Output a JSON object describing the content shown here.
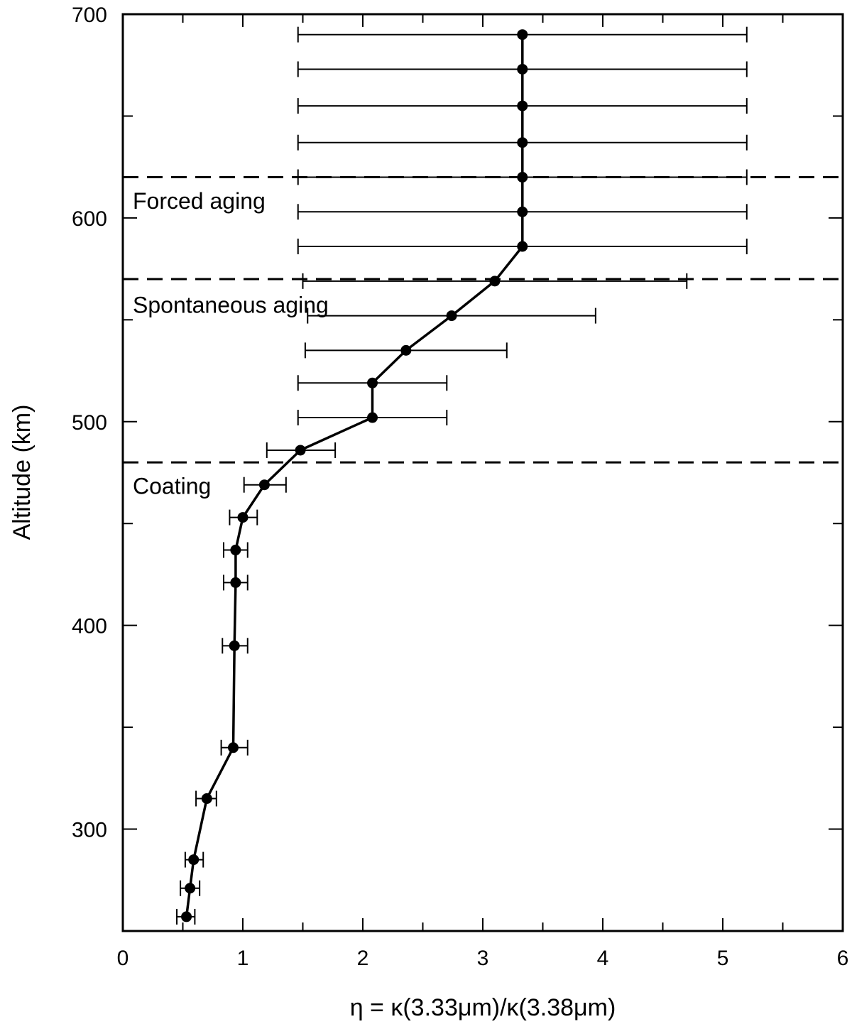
{
  "chart_data": {
    "type": "line",
    "title": "",
    "xlabel": "η = κ(3.33μm)/κ(3.38μm)",
    "ylabel": "Altitude (km)",
    "xlim": [
      0,
      6
    ],
    "ylim": [
      250,
      700
    ],
    "x_ticks": [
      "0",
      "1",
      "2",
      "3",
      "4",
      "5",
      "6"
    ],
    "y_ticks": [
      "300",
      "400",
      "500",
      "600",
      "700"
    ],
    "grid": false,
    "legend": "none",
    "series": [
      {
        "points": [
          {
            "y": 257,
            "x": 0.53,
            "xerr_low": 0.45,
            "xerr_high": 0.6
          },
          {
            "y": 271,
            "x": 0.56,
            "xerr_low": 0.48,
            "xerr_high": 0.64
          },
          {
            "y": 285,
            "x": 0.59,
            "xerr_low": 0.52,
            "xerr_high": 0.67
          },
          {
            "y": 315,
            "x": 0.7,
            "xerr_low": 0.61,
            "xerr_high": 0.78
          },
          {
            "y": 340,
            "x": 0.92,
            "xerr_low": 0.82,
            "xerr_high": 1.04
          },
          {
            "y": 390,
            "x": 0.93,
            "xerr_low": 0.83,
            "xerr_high": 1.04
          },
          {
            "y": 421,
            "x": 0.94,
            "xerr_low": 0.84,
            "xerr_high": 1.04
          },
          {
            "y": 437,
            "x": 0.94,
            "xerr_low": 0.84,
            "xerr_high": 1.04
          },
          {
            "y": 453,
            "x": 1.0,
            "xerr_low": 0.89,
            "xerr_high": 1.12
          },
          {
            "y": 469,
            "x": 1.18,
            "xerr_low": 1.01,
            "xerr_high": 1.36
          },
          {
            "y": 486,
            "x": 1.48,
            "xerr_low": 1.2,
            "xerr_high": 1.77
          },
          {
            "y": 502,
            "x": 2.08,
            "xerr_low": 1.46,
            "xerr_high": 2.7
          },
          {
            "y": 519,
            "x": 2.08,
            "xerr_low": 1.46,
            "xerr_high": 2.7
          },
          {
            "y": 535,
            "x": 2.36,
            "xerr_low": 1.52,
            "xerr_high": 3.2
          },
          {
            "y": 552,
            "x": 2.74,
            "xerr_low": 1.54,
            "xerr_high": 3.94
          },
          {
            "y": 569,
            "x": 3.1,
            "xerr_low": 1.5,
            "xerr_high": 4.7
          },
          {
            "y": 586,
            "x": 3.33,
            "xerr_low": 1.46,
            "xerr_high": 5.2
          },
          {
            "y": 603,
            "x": 3.33,
            "xerr_low": 1.46,
            "xerr_high": 5.2
          },
          {
            "y": 620,
            "x": 3.33,
            "xerr_low": 1.46,
            "xerr_high": 5.2
          },
          {
            "y": 637,
            "x": 3.33,
            "xerr_low": 1.46,
            "xerr_high": 5.2
          },
          {
            "y": 655,
            "x": 3.33,
            "xerr_low": 1.46,
            "xerr_high": 5.2
          },
          {
            "y": 673,
            "x": 3.33,
            "xerr_low": 1.46,
            "xerr_high": 5.2
          },
          {
            "y": 690,
            "x": 3.33,
            "xerr_low": 1.46,
            "xerr_high": 5.2
          }
        ]
      }
    ],
    "reference_lines": [
      {
        "y": 620,
        "style": "dashed"
      },
      {
        "y": 570,
        "style": "dashed"
      },
      {
        "y": 480,
        "style": "dashed"
      }
    ],
    "annotations": [
      {
        "text": "Forced aging",
        "y": 608
      },
      {
        "text": "Spontaneous aging",
        "y": 557
      },
      {
        "text": "Coating",
        "y": 468
      }
    ]
  }
}
